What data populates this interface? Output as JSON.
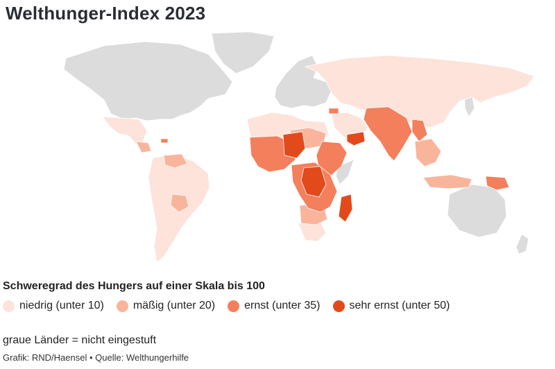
{
  "title": "Welthunger-Index 2023",
  "legend": {
    "title": "Schweregrad des Hungers auf einer Skala bis 100",
    "items": [
      {
        "label": "niedrig (unter 10)",
        "color": "#fde3da"
      },
      {
        "label": "mäßig (unter 20)",
        "color": "#f9b59b"
      },
      {
        "label": "ernst (unter 35)",
        "color": "#f37f5c"
      },
      {
        "label": "sehr ernst (unter 50)",
        "color": "#e24a1c"
      }
    ]
  },
  "colors": {
    "not_rated": "#dcdcdc",
    "ocean": "#ffffff"
  },
  "note": "graue Länder = nicht eingestuft",
  "source": "Grafik: RND/Haensel • Quelle: Welthungerhilfe"
}
